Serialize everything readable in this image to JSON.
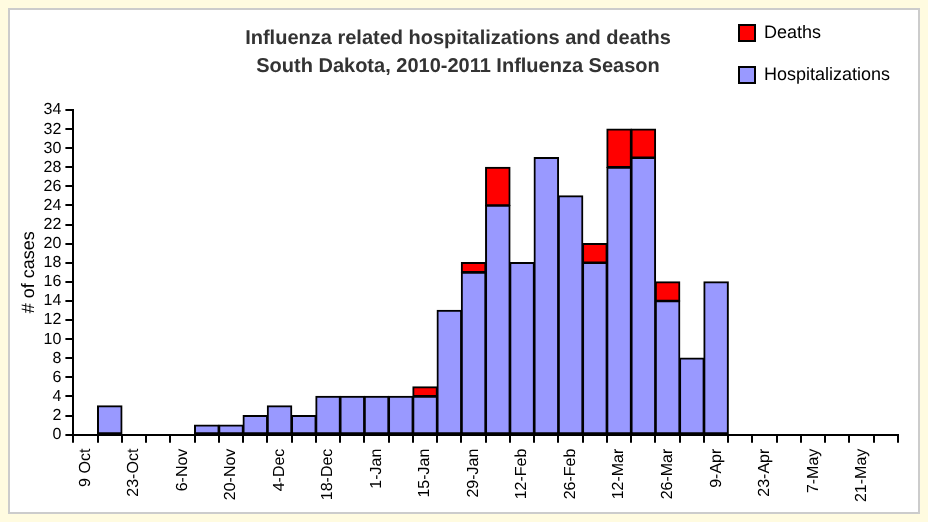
{
  "chart_data": {
    "type": "bar",
    "title": "Influenza related hospitalizations and deaths",
    "subtitle": "South Dakota, 2010-2011 Influenza Season",
    "ylabel": "# of cases",
    "categories": [
      "9 Oct",
      null,
      "23-Oct",
      null,
      "6-Nov",
      null,
      "20-Nov",
      null,
      "4-Dec",
      null,
      "18-Dec",
      null,
      "1-Jan",
      null,
      "15-Jan",
      null,
      "29-Jan",
      null,
      "12-Feb",
      null,
      "26-Feb",
      null,
      "12-Mar",
      null,
      "26-Mar",
      null,
      "9-Apr",
      null,
      "23-Apr",
      null,
      "7-May",
      null,
      "21-May",
      null
    ],
    "series": [
      {
        "name": "Hospitalizations",
        "color": "#9999ff",
        "values": [
          0,
          3,
          0,
          0,
          0,
          1,
          1,
          2,
          3,
          2,
          4,
          4,
          4,
          4,
          4,
          13,
          17,
          24,
          18,
          29,
          25,
          18,
          28,
          29,
          14,
          8,
          16,
          0,
          0,
          0,
          0,
          0,
          0,
          0
        ]
      },
      {
        "name": "Deaths",
        "color": "#ff0000",
        "values": [
          0,
          0,
          0,
          0,
          0,
          0,
          0,
          0,
          0,
          0,
          0,
          0,
          0,
          0,
          1,
          0,
          1,
          4,
          0,
          0,
          0,
          2,
          4,
          3,
          2,
          0,
          0,
          0,
          0,
          0,
          0,
          0,
          0,
          0
        ]
      }
    ],
    "stacked": true,
    "ylim": [
      0,
      34
    ],
    "yticks": [
      0,
      2,
      4,
      6,
      8,
      10,
      12,
      14,
      16,
      18,
      20,
      22,
      24,
      26,
      28,
      30,
      32,
      34
    ],
    "grid": false,
    "legend": "top right"
  }
}
